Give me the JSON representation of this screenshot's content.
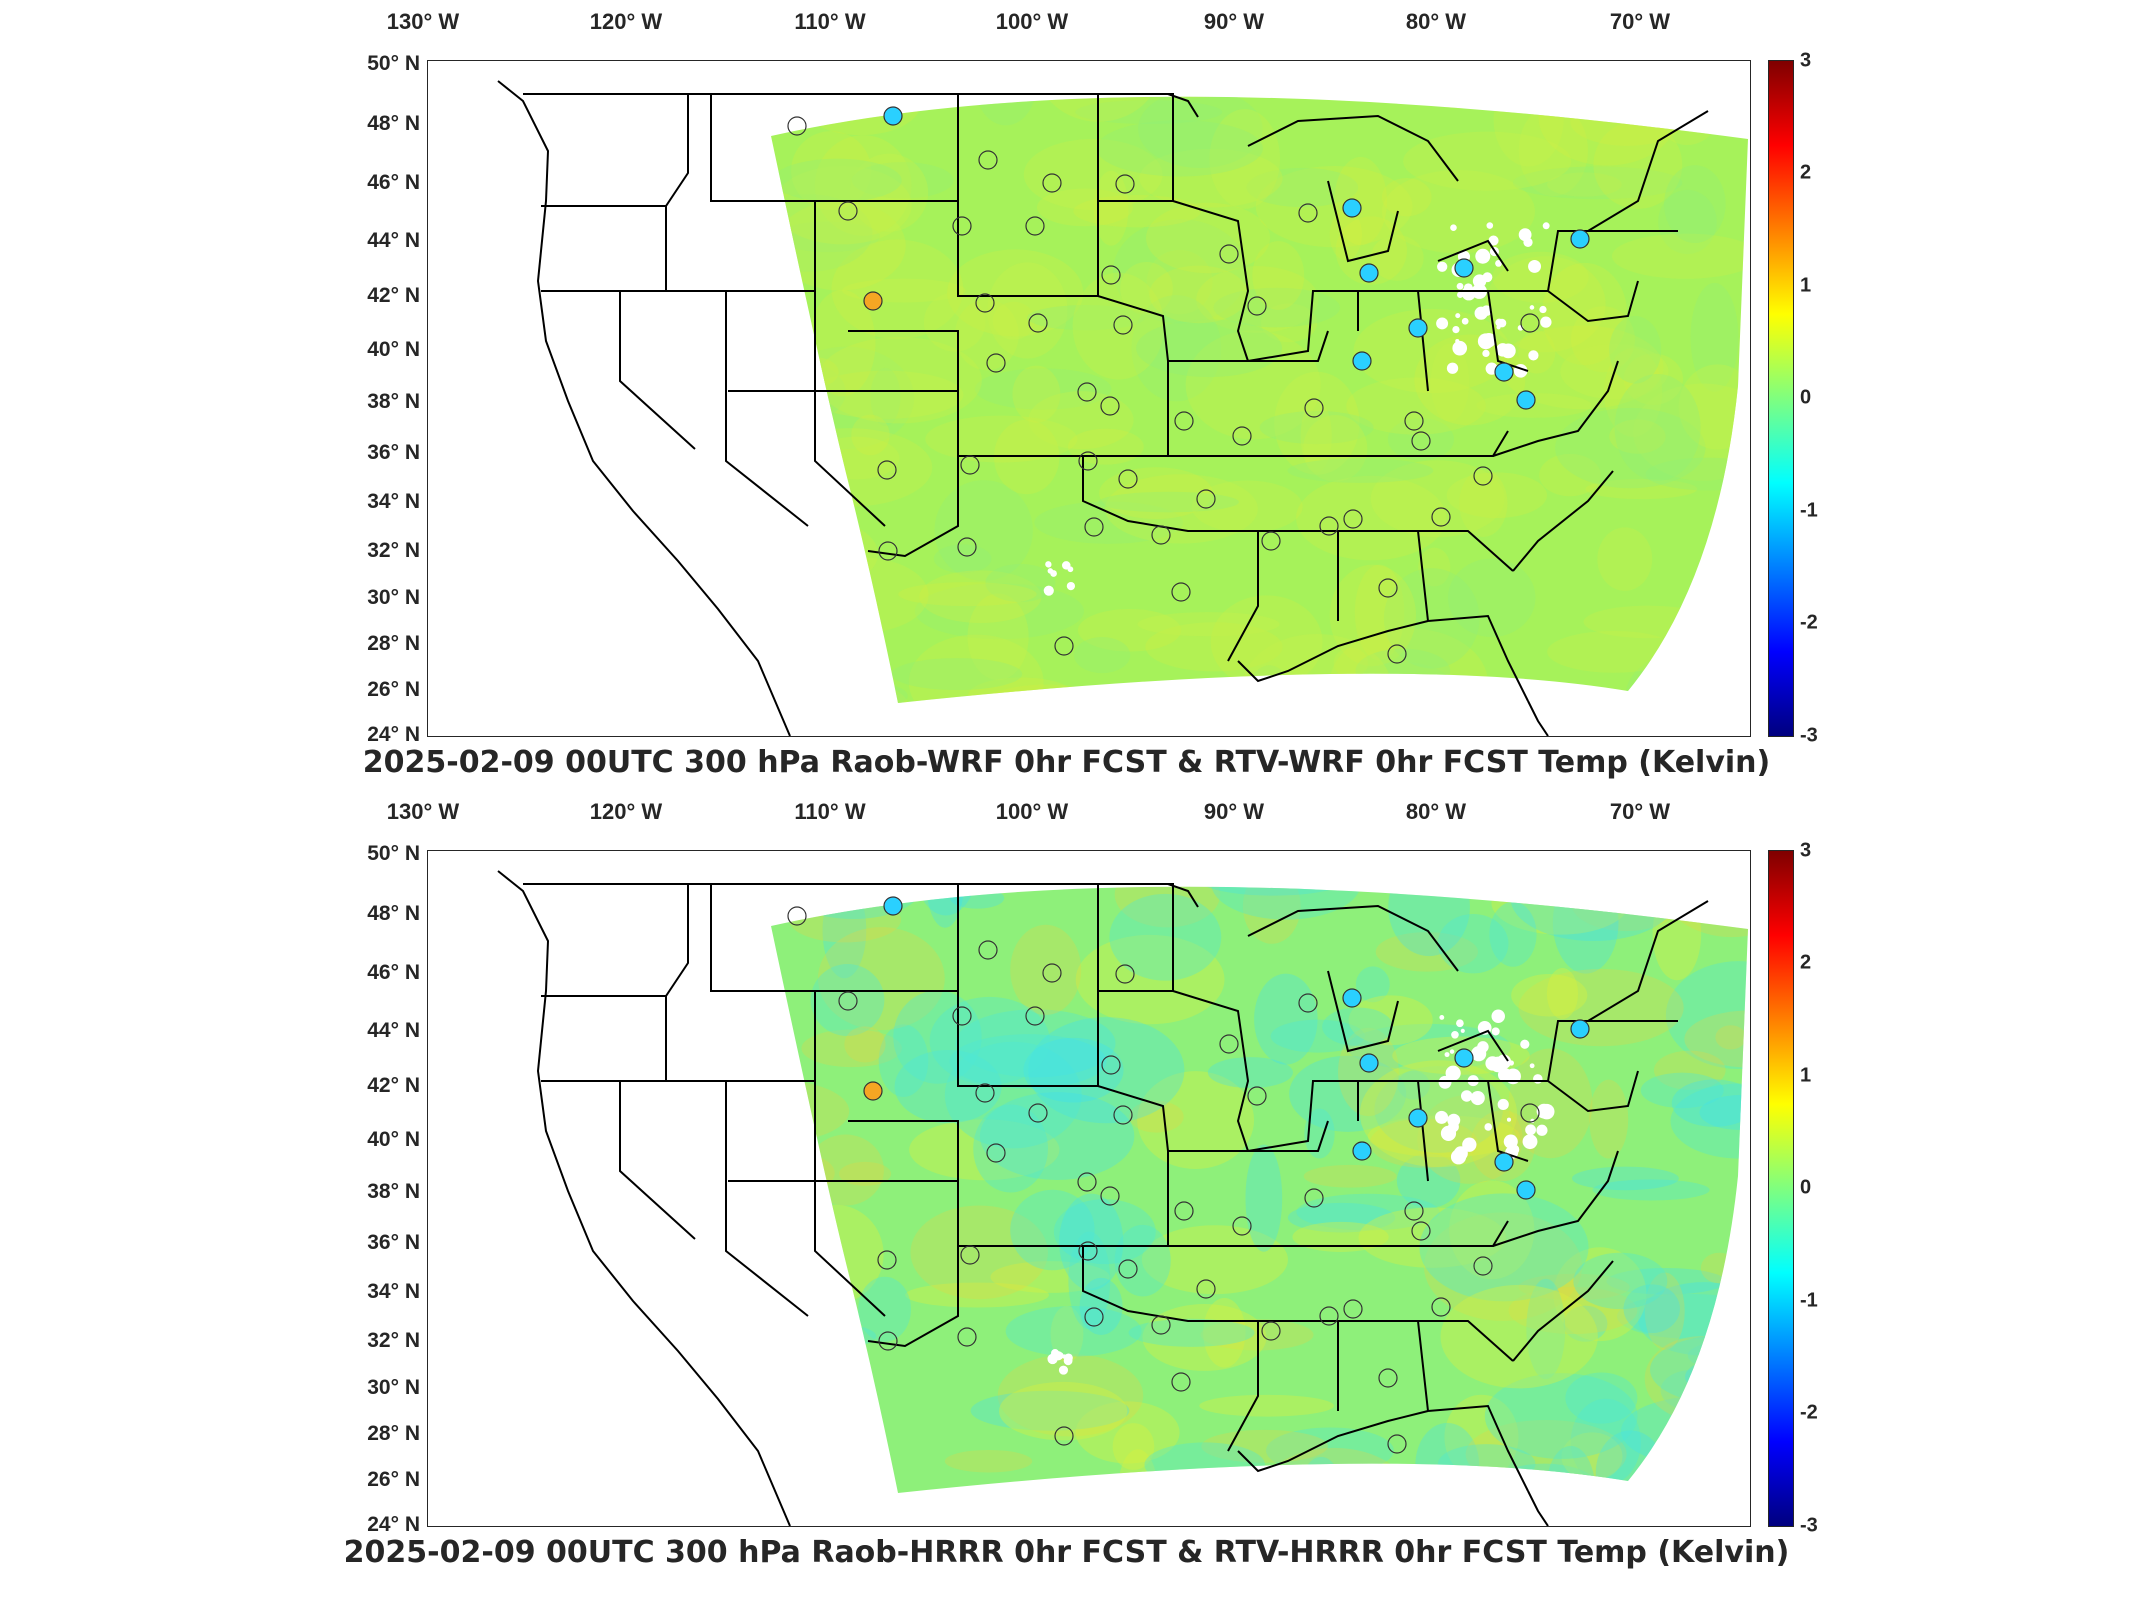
{
  "panels": [
    {
      "title": "2025-02-09 00UTC 300 hPa Raob-WRF 0hr FCST & RTV-WRF 0hr FCST Temp (Kelvin)",
      "field_style": "wrf"
    },
    {
      "title": "2025-02-09 00UTC 300 hPa Raob-HRRR 0hr FCST & RTV-HRRR 0hr FCST Temp (Kelvin)",
      "field_style": "hrrr"
    }
  ],
  "axes": {
    "longitude_ticks": [
      "130° W",
      "120° W",
      "110° W",
      "100° W",
      "90° W",
      "80° W",
      "70° W"
    ],
    "latitude_ticks": [
      "50° N",
      "48° N",
      "46° N",
      "44° N",
      "42° N",
      "40° N",
      "38° N",
      "36° N",
      "34° N",
      "32° N",
      "30° N",
      "28° N",
      "26° N",
      "24° N"
    ]
  },
  "colorbar": {
    "ticks": [
      "3",
      "2",
      "1",
      "0",
      "-1",
      "-2",
      "-3"
    ],
    "range": [
      -3,
      3
    ],
    "colormap": "jet"
  },
  "colors": {
    "frame": "#262626",
    "state_lines": "#000000",
    "field_base_wrf": "#a6f25a",
    "field_base_hrrr": "#8ef07a"
  }
}
